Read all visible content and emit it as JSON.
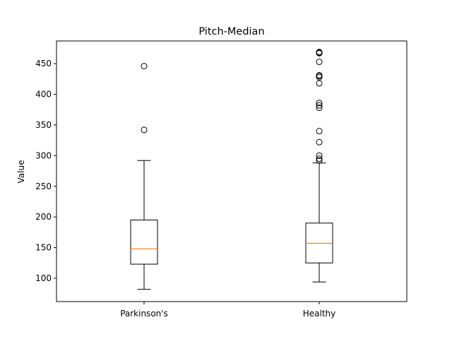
{
  "chart_data": {
    "type": "box",
    "title": "Pitch-Median",
    "xlabel": "",
    "ylabel": "Value",
    "ylim": [
      62,
      487
    ],
    "yticks": [
      100,
      150,
      200,
      250,
      300,
      350,
      400,
      450
    ],
    "grid": false,
    "categories": [
      "Parkinson's",
      "Healthy"
    ],
    "boxes": [
      {
        "label": "Parkinson's",
        "whisker_low": 82,
        "q1": 123,
        "median": 148,
        "q3": 195,
        "whisker_high": 292,
        "outliers": [
          342,
          446
        ]
      },
      {
        "label": "Healthy",
        "whisker_low": 94,
        "q1": 125,
        "median": 157,
        "q3": 190,
        "whisker_high": 288,
        "outliers": [
          292,
          295,
          300,
          322,
          340,
          378,
          382,
          386,
          418,
          428,
          430,
          431,
          453,
          467,
          468,
          469
        ]
      }
    ],
    "colors": {
      "box": "#000000",
      "median": "#ff7f0e",
      "background": "#ffffff"
    }
  }
}
